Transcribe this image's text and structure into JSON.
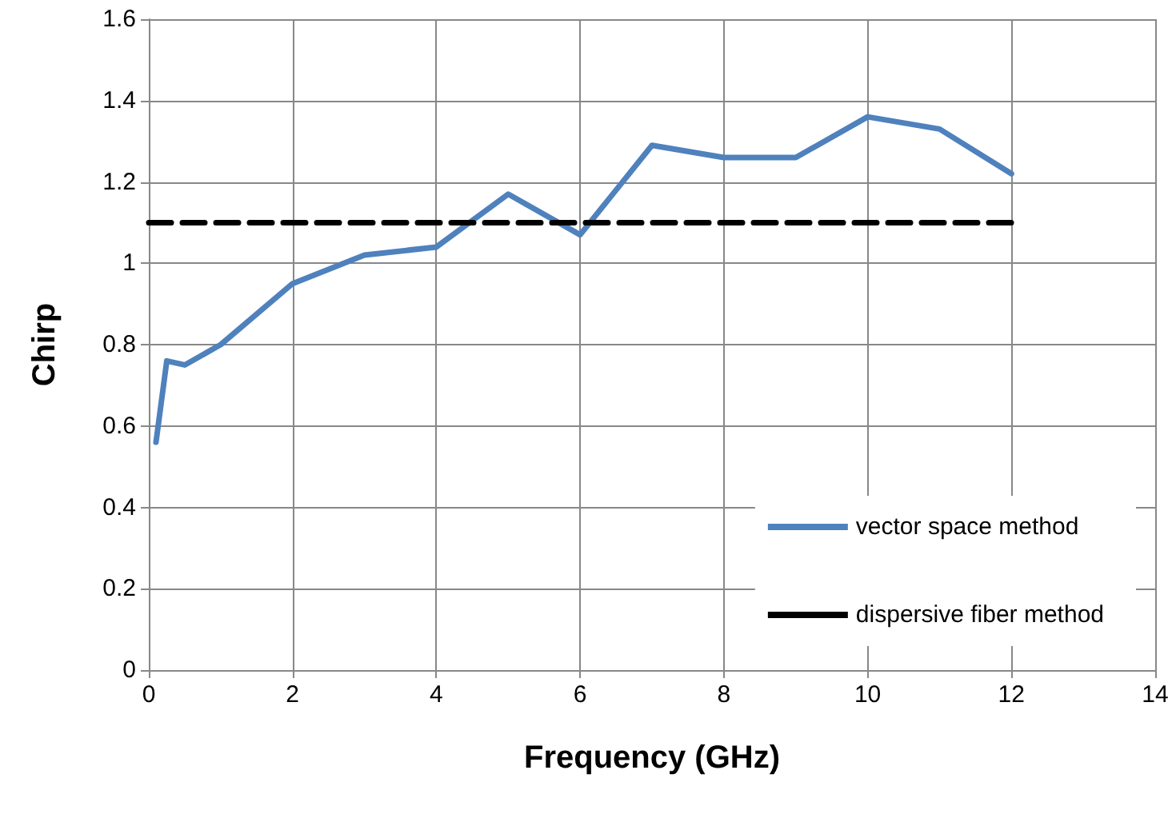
{
  "chart_data": {
    "type": "line",
    "xlabel": "Frequency (GHz)",
    "ylabel": "Chirp",
    "xlim": [
      0,
      14
    ],
    "xticks": [
      0,
      2,
      4,
      6,
      8,
      10,
      12,
      14
    ],
    "ylim": [
      0,
      1.6
    ],
    "yticks": [
      0,
      0.2,
      0.4,
      0.6,
      0.8,
      1,
      1.2,
      1.4,
      1.6
    ],
    "grid": true,
    "legend": "bottom right",
    "marker": "none",
    "series": [
      {
        "name": "vector space method",
        "color": "#4f81bd",
        "line_style": "solid",
        "x": [
          0.1,
          0.25,
          0.5,
          1,
          2,
          3,
          4,
          5,
          6,
          7,
          8,
          9,
          10,
          11,
          12
        ],
        "values": [
          0.56,
          0.76,
          0.75,
          0.8,
          0.95,
          1.02,
          1.04,
          1.17,
          1.07,
          1.29,
          1.26,
          1.26,
          1.36,
          1.33,
          1.22
        ]
      },
      {
        "name": "dispersive fiber method",
        "color": "#000000",
        "line_style": "dashed",
        "x": [
          0,
          12
        ],
        "values": [
          1.1,
          1.1
        ]
      }
    ]
  }
}
